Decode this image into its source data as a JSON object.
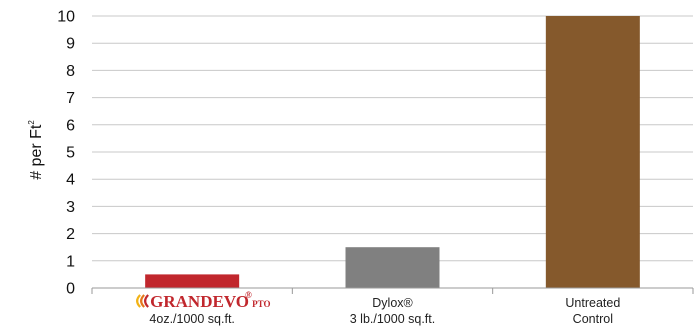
{
  "chart_data": {
    "type": "bar",
    "title": "",
    "xlabel": "",
    "ylabel": "# per Ft",
    "ylabel_superscript": "2",
    "ylim": [
      0,
      10
    ],
    "yticks": [
      0,
      1,
      2,
      3,
      4,
      5,
      6,
      7,
      8,
      9,
      10
    ],
    "grid": true,
    "categories": [
      {
        "logo_text": "GRANDEVO",
        "logo_mark": "®",
        "logo_suffix": "PTO",
        "lines": [
          "4oz./1000 sq.ft."
        ]
      },
      {
        "lines": [
          "Dylox®",
          "3 lb./1000 sq.ft."
        ]
      },
      {
        "lines": [
          "Untreated",
          "Control"
        ]
      }
    ],
    "values": [
      0.5,
      1.5,
      10
    ],
    "colors": [
      "#c1272d",
      "#808080",
      "#85592c"
    ]
  }
}
